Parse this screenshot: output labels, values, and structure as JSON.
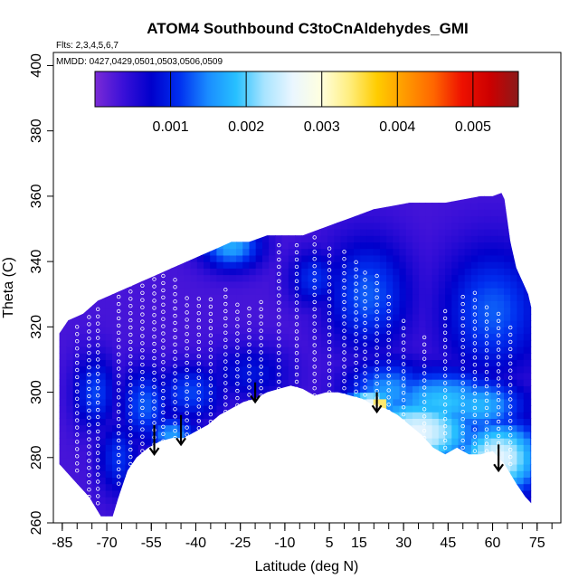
{
  "chart_data": {
    "type": "heatmap",
    "title": "ATOM4 Southbound C3toCnAldehydes_GMI",
    "flights_note": "Flts: 2,3,4,5,6,7",
    "mmdd_note": "MMDD: 0427,0429,0501,0503,0506,0509",
    "xlabel": "Latitude (deg N)",
    "ylabel": "Theta (C)",
    "xlim": [
      -88,
      83
    ],
    "ylim": [
      260,
      404
    ],
    "x_ticks": [
      -85,
      -70,
      -55,
      -40,
      -25,
      -10,
      5,
      15,
      30,
      45,
      60,
      75
    ],
    "x_tick_labels": [
      "-85",
      "-70",
      "-55",
      "-40",
      "-25",
      "-10",
      "5",
      "15",
      "30",
      "45",
      "60",
      "75"
    ],
    "y_ticks": [
      260,
      280,
      300,
      320,
      340,
      360,
      380,
      400
    ],
    "y_tick_labels": [
      "260",
      "280",
      "300",
      "320",
      "340",
      "360",
      "380",
      "400"
    ],
    "colorbar": {
      "range": [
        0,
        0.0056
      ],
      "ticks": [
        0.001,
        0.002,
        0.003,
        0.004,
        0.005
      ],
      "tick_labels": [
        "0.001",
        "0.002",
        "0.003",
        "0.004",
        "0.005"
      ],
      "colors": [
        "#7b2bd6",
        "#3a10d8",
        "#0000cc",
        "#0030f0",
        "#1a8cff",
        "#27c0ff",
        "#a8e4ff",
        "#eaf6ff",
        "#ffffe0",
        "#ffee80",
        "#ffcc00",
        "#ff9900",
        "#ff6600",
        "#ee1100",
        "#cc0000",
        "#8b1a1a"
      ]
    },
    "background_level": 0.0003,
    "domain_top": [
      [
        -86,
        318
      ],
      [
        -83,
        322
      ],
      [
        -78,
        324
      ],
      [
        -73,
        328
      ],
      [
        -68,
        330
      ],
      [
        -63,
        332
      ],
      [
        -58,
        334
      ],
      [
        -53,
        336
      ],
      [
        -48,
        338
      ],
      [
        -43,
        340
      ],
      [
        -38,
        342
      ],
      [
        -33,
        344
      ],
      [
        -28,
        346
      ],
      [
        -22,
        346
      ],
      [
        -16,
        348
      ],
      [
        -10,
        348
      ],
      [
        -4,
        348
      ],
      [
        2,
        350
      ],
      [
        8,
        352
      ],
      [
        14,
        354
      ],
      [
        20,
        356
      ],
      [
        26,
        357
      ],
      [
        32,
        358
      ],
      [
        38,
        358
      ],
      [
        44,
        358
      ],
      [
        50,
        359
      ],
      [
        56,
        360
      ],
      [
        60,
        360
      ],
      [
        63,
        361
      ],
      [
        64,
        359
      ],
      [
        66,
        346
      ],
      [
        68,
        338
      ],
      [
        70,
        334
      ],
      [
        72,
        330
      ],
      [
        73,
        326
      ]
    ],
    "domain_bottom": [
      [
        -86,
        278
      ],
      [
        -80,
        272
      ],
      [
        -76,
        268
      ],
      [
        -72,
        262
      ],
      [
        -68,
        262
      ],
      [
        -66,
        268
      ],
      [
        -63,
        276
      ],
      [
        -60,
        280
      ],
      [
        -56,
        283
      ],
      [
        -52,
        285
      ],
      [
        -48,
        286
      ],
      [
        -44,
        286
      ],
      [
        -40,
        288
      ],
      [
        -36,
        290
      ],
      [
        -32,
        293
      ],
      [
        -28,
        295
      ],
      [
        -24,
        297
      ],
      [
        -20,
        298
      ],
      [
        -16,
        300
      ],
      [
        -12,
        301
      ],
      [
        -8,
        302
      ],
      [
        -4,
        301
      ],
      [
        0,
        299
      ],
      [
        4,
        300
      ],
      [
        8,
        300
      ],
      [
        12,
        299
      ],
      [
        16,
        298
      ],
      [
        20,
        296
      ],
      [
        24,
        295
      ],
      [
        28,
        293
      ],
      [
        32,
        290
      ],
      [
        36,
        287
      ],
      [
        40,
        283
      ],
      [
        44,
        281
      ],
      [
        48,
        283
      ],
      [
        52,
        281
      ],
      [
        56,
        281
      ],
      [
        60,
        282
      ],
      [
        64,
        278
      ],
      [
        68,
        272
      ],
      [
        71,
        268
      ],
      [
        73,
        266
      ]
    ],
    "features": [
      {
        "lat": -28,
        "theta": 345,
        "sx": 7,
        "sy": 5,
        "value": 0.0017
      },
      {
        "lat": 0,
        "theta": 335,
        "sx": 6,
        "sy": 6,
        "value": 0.0011
      },
      {
        "lat": 18,
        "theta": 330,
        "sx": 10,
        "sy": 12,
        "value": 0.0013
      },
      {
        "lat": 60,
        "theta": 325,
        "sx": 12,
        "sy": 14,
        "value": 0.0013
      },
      {
        "lat": -74,
        "theta": 300,
        "sx": 5,
        "sy": 8,
        "value": 0.0012
      },
      {
        "lat": -57,
        "theta": 296,
        "sx": 6,
        "sy": 8,
        "value": 0.0013
      },
      {
        "lat": -42,
        "theta": 300,
        "sx": 8,
        "sy": 6,
        "value": 0.0012
      },
      {
        "lat": -22,
        "theta": 306,
        "sx": 10,
        "sy": 6,
        "value": 0.0009
      },
      {
        "lat": 25,
        "theta": 300,
        "sx": 10,
        "sy": 7,
        "value": 0.0016
      },
      {
        "lat": 43,
        "theta": 297,
        "sx": 15,
        "sy": 7,
        "value": 0.0019
      },
      {
        "lat": 55,
        "theta": 296,
        "sx": 11,
        "sy": 6,
        "value": 0.0018
      },
      {
        "lat": 22,
        "theta": 296,
        "sx": 2,
        "sy": 2,
        "value": 0.0044
      },
      {
        "lat": 19,
        "theta": 297,
        "sx": 6,
        "sy": 3,
        "value": 0.0026
      },
      {
        "lat": 35,
        "theta": 288,
        "sx": 14,
        "sy": 8,
        "value": 0.0026
      },
      {
        "lat": 62,
        "theta": 280,
        "sx": 10,
        "sy": 8,
        "value": 0.0026
      },
      {
        "lat": -48,
        "theta": 287,
        "sx": 6,
        "sy": 4,
        "value": 0.0016
      },
      {
        "lat": -66,
        "theta": 280,
        "sx": 5,
        "sy": 8,
        "value": 0.0011
      }
    ],
    "flight_tracks": [
      {
        "lat": -80,
        "t_bottom": 276,
        "t_top": 322
      },
      {
        "lat": -76,
        "t_bottom": 268,
        "t_top": 325
      },
      {
        "lat": -73,
        "t_bottom": 266,
        "t_top": 326
      },
      {
        "lat": -66,
        "t_bottom": 272,
        "t_top": 330
      },
      {
        "lat": -62,
        "t_bottom": 278,
        "t_top": 333
      },
      {
        "lat": -58,
        "t_bottom": 282,
        "t_top": 333
      },
      {
        "lat": -54,
        "t_bottom": 284,
        "t_top": 336
      },
      {
        "lat": -51,
        "t_bottom": 285,
        "t_top": 336
      },
      {
        "lat": -47,
        "t_bottom": 286,
        "t_top": 335
      },
      {
        "lat": -43,
        "t_bottom": 287,
        "t_top": 329
      },
      {
        "lat": -39,
        "t_bottom": 289,
        "t_top": 330
      },
      {
        "lat": -35,
        "t_bottom": 291,
        "t_top": 330
      },
      {
        "lat": -30,
        "t_bottom": 294,
        "t_top": 333
      },
      {
        "lat": -26,
        "t_bottom": 296,
        "t_top": 328
      },
      {
        "lat": -22,
        "t_bottom": 297,
        "t_top": 326
      },
      {
        "lat": -18,
        "t_bottom": 299,
        "t_top": 328
      },
      {
        "lat": -12,
        "t_bottom": 301,
        "t_top": 346
      },
      {
        "lat": -6,
        "t_bottom": 301,
        "t_top": 347
      },
      {
        "lat": 0,
        "t_bottom": 299,
        "t_top": 348
      },
      {
        "lat": 5,
        "t_bottom": 300,
        "t_top": 345
      },
      {
        "lat": 10,
        "t_bottom": 299,
        "t_top": 343
      },
      {
        "lat": 14,
        "t_bottom": 298,
        "t_top": 340
      },
      {
        "lat": 17,
        "t_bottom": 297,
        "t_top": 337
      },
      {
        "lat": 21,
        "t_bottom": 296,
        "t_top": 336
      },
      {
        "lat": 25,
        "t_bottom": 294,
        "t_top": 331
      },
      {
        "lat": 30,
        "t_bottom": 291,
        "t_top": 323
      },
      {
        "lat": 37,
        "t_bottom": 286,
        "t_top": 318
      },
      {
        "lat": 44,
        "t_bottom": 283,
        "t_top": 326
      },
      {
        "lat": 50,
        "t_bottom": 283,
        "t_top": 330
      },
      {
        "lat": 54,
        "t_bottom": 282,
        "t_top": 332
      },
      {
        "lat": 58,
        "t_bottom": 282,
        "t_top": 328
      },
      {
        "lat": 62,
        "t_bottom": 280,
        "t_top": 326
      },
      {
        "lat": 66,
        "t_bottom": 278,
        "t_top": 320
      }
    ],
    "arrows": [
      {
        "lat": -54,
        "theta_start": 290,
        "theta_end": 281
      },
      {
        "lat": -45,
        "theta_start": 293,
        "theta_end": 284
      },
      {
        "lat": -20,
        "theta_start": 303,
        "theta_end": 297
      },
      {
        "lat": 21,
        "theta_start": 300,
        "theta_end": 294
      },
      {
        "lat": 62,
        "theta_start": 284,
        "theta_end": 276
      }
    ]
  }
}
